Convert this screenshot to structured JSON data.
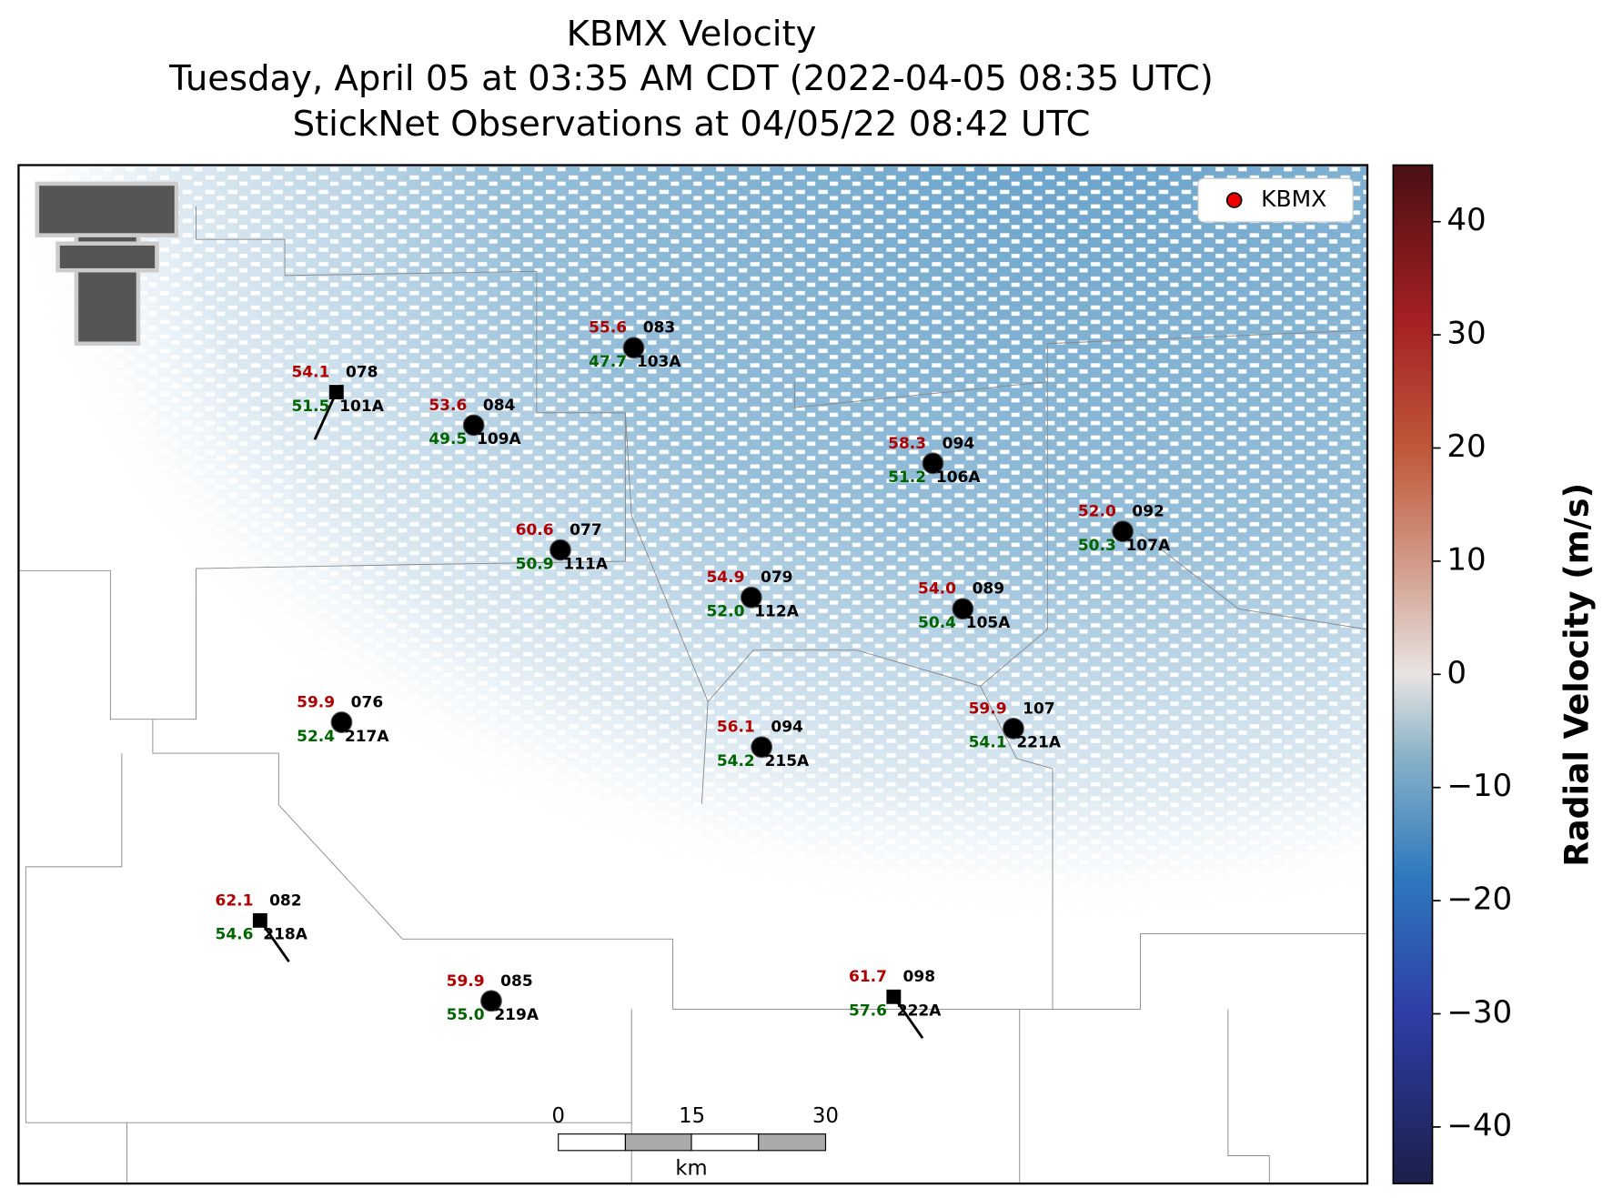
{
  "chart_data": {
    "type": "station_map",
    "title_lines": [
      "KBMX Velocity",
      "Tuesday, April 05 at 03:35 AM CDT (2022-04-05 08:35 UTC)",
      "StickNet Observations at 04/05/22 08:42 UTC"
    ],
    "legend": "KBMX",
    "stations": [
      {
        "id": "103A",
        "temperature": 55.6,
        "wind_dir": "083",
        "dewpoint": 47.7
      },
      {
        "id": "101A",
        "temperature": 54.1,
        "wind_dir": "078",
        "dewpoint": 51.5
      },
      {
        "id": "109A",
        "temperature": 53.6,
        "wind_dir": "084",
        "dewpoint": 49.5
      },
      {
        "id": "106A",
        "temperature": 58.3,
        "wind_dir": "094",
        "dewpoint": 51.2
      },
      {
        "id": "111A",
        "temperature": 60.6,
        "wind_dir": "077",
        "dewpoint": 50.9
      },
      {
        "id": "107A",
        "temperature": 52,
        "temperature_label": "52.0",
        "wind_dir": "092",
        "dewpoint": 50.3
      },
      {
        "id": "112A",
        "temperature": 54.9,
        "wind_dir": "079",
        "dewpoint": 52,
        "dewpoint_label": "52.0"
      },
      {
        "id": "105A",
        "temperature": 54,
        "temperature_label": "54.0",
        "wind_dir": "089",
        "dewpoint": 50.4
      },
      {
        "id": "217A",
        "temperature": 59.9,
        "wind_dir": "076",
        "dewpoint": 52.4
      },
      {
        "id": "221A",
        "temperature": 59.9,
        "wind_dir": "107",
        "dewpoint": 54.1
      },
      {
        "id": "215A",
        "temperature": 56.1,
        "wind_dir": "094",
        "dewpoint": 54.2
      },
      {
        "id": "218A",
        "temperature": 62.1,
        "wind_dir": "082",
        "dewpoint": 54.6
      },
      {
        "id": "219A",
        "temperature": 59.9,
        "wind_dir": "085",
        "dewpoint": 55,
        "dewpoint_label": "55.0"
      },
      {
        "id": "222A",
        "temperature": 61.7,
        "wind_dir": "098",
        "dewpoint": 57.6
      }
    ],
    "colorbar": {
      "label": "Radial Velocity (m/s)",
      "ylim": [
        -45,
        45
      ],
      "yticks": [
        {
          "value": -40,
          "label": "−40"
        },
        {
          "value": -30,
          "label": "−30"
        },
        {
          "value": -20,
          "label": "−20"
        },
        {
          "value": -10,
          "label": "−10"
        },
        0,
        10,
        20,
        30,
        40
      ]
    },
    "scale_bar": {
      "ticks": [
        0,
        15,
        30
      ],
      "unit": "km"
    }
  }
}
